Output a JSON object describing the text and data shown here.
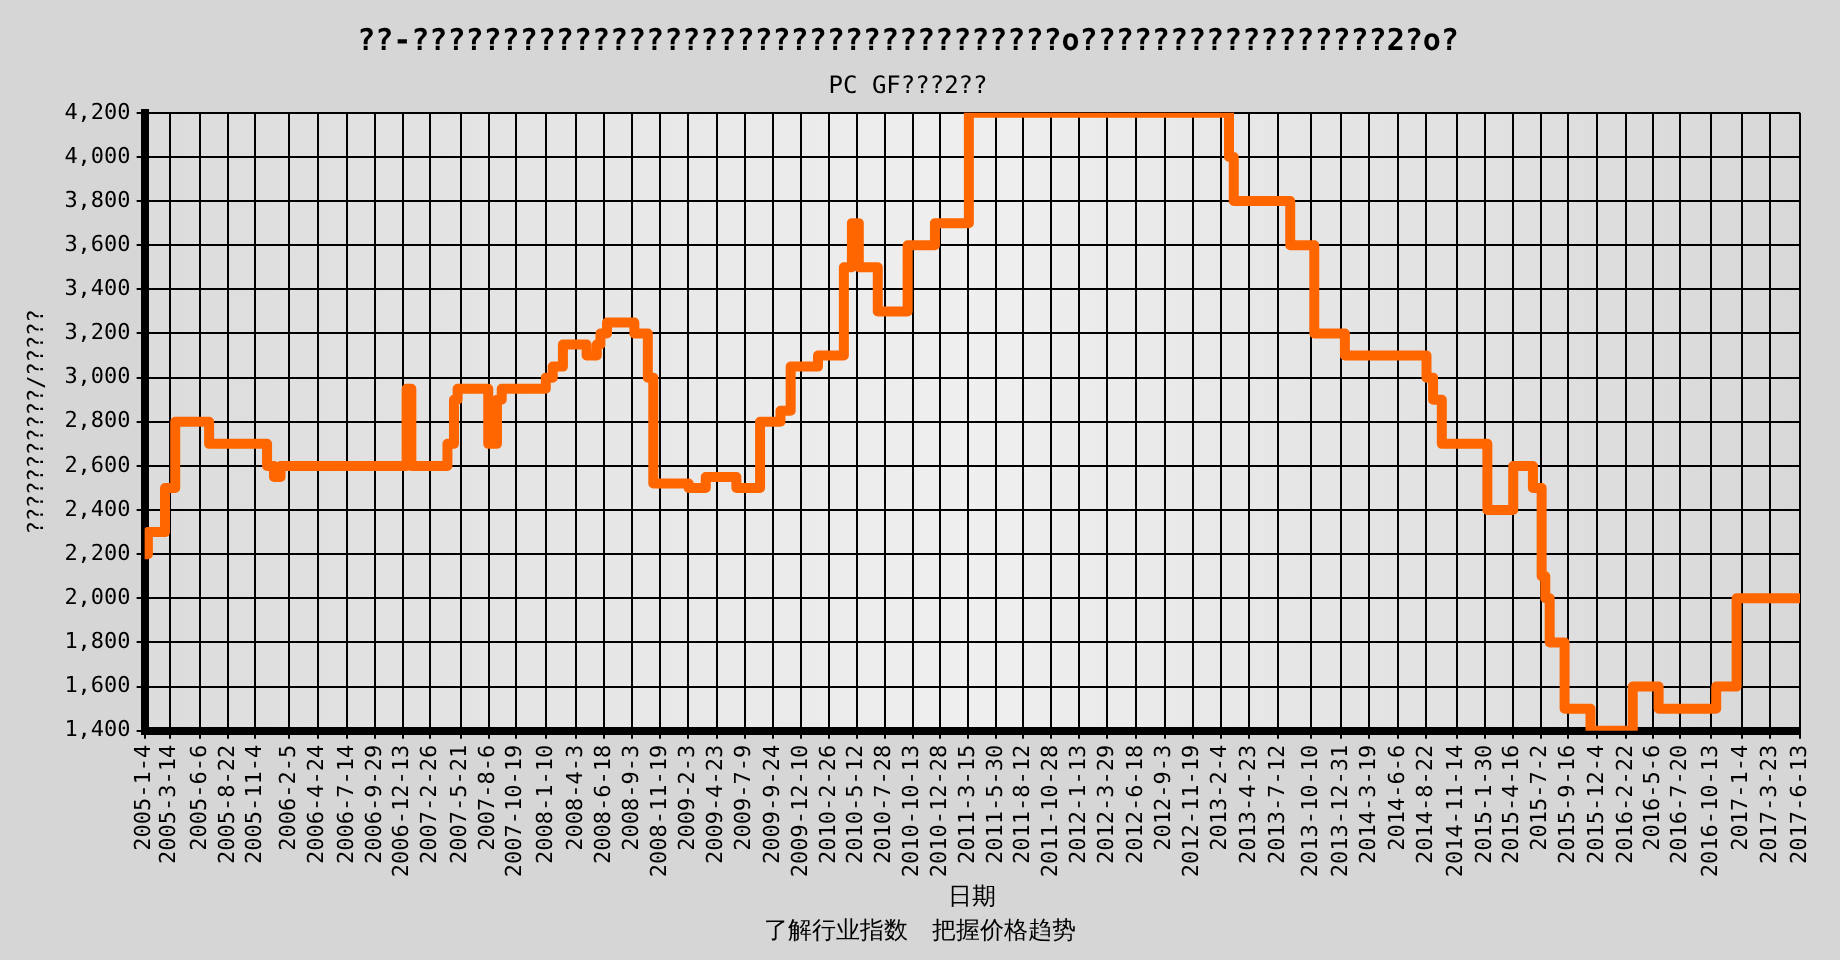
{
  "chart_data": {
    "type": "step",
    "title": "??-????????????????????????????????????o?????????????????2?o?",
    "subtitle": "PC GF???2??",
    "xlabel": "日期",
    "ylabel": "???????????/?????",
    "annotations": [
      "了解行业指数　把握价格趋势"
    ],
    "x": [
      "2005-01-04",
      "2005-01-13",
      "2005-03-01",
      "2005-03-29",
      "2005-06-30",
      "2005-12-06",
      "2005-12-25",
      "2006-01-12",
      "2006-12-24",
      "2007-01-06",
      "2007-04-15",
      "2007-05-03",
      "2007-05-13",
      "2007-08-05",
      "2007-08-29",
      "2007-09-11",
      "2008-01-10",
      "2008-01-29",
      "2008-02-26",
      "2008-04-13",
      "2008-05-01",
      "2008-05-29",
      "2008-06-08",
      "2008-06-26",
      "2008-09-09",
      "2008-10-16",
      "2008-10-31",
      "2009-02-05",
      "2009-03-24",
      "2009-06-16",
      "2009-08-20",
      "2009-10-15",
      "2009-11-12",
      "2010-01-26",
      "2010-04-07",
      "2010-04-29",
      "2010-05-18",
      "2010-07-09",
      "2010-09-29",
      "2010-12-13",
      "2011-03-16",
      "2013-02-27",
      "2013-03-12",
      "2013-08-14",
      "2013-10-19",
      "2014-01-11",
      "2014-08-23",
      "2014-09-10",
      "2014-10-04",
      "2015-02-06",
      "2015-04-18",
      "2015-06-11",
      "2015-07-05",
      "2015-07-15",
      "2015-07-27",
      "2015-09-06",
      "2015-11-16",
      "2016-03-11",
      "2016-05-21",
      "2016-10-26",
      "2016-12-21",
      "2017-06-13"
    ],
    "series": [
      {
        "color": "#ff6600",
        "values": [
          2200,
          2300,
          2500,
          2800,
          2700,
          2600,
          2550,
          2600,
          2950,
          2600,
          2700,
          2900,
          2950,
          2700,
          2900,
          2950,
          3000,
          3050,
          3150,
          3150,
          3100,
          3150,
          3200,
          3250,
          3200,
          3000,
          2520,
          2500,
          2550,
          2500,
          2800,
          2850,
          3050,
          3100,
          3500,
          3700,
          3500,
          3300,
          3600,
          3700,
          4200,
          4000,
          3800,
          3600,
          3200,
          3100,
          3000,
          2900,
          2700,
          2400,
          2600,
          2500,
          2100,
          2000,
          1800,
          1500,
          1400,
          1600,
          1500,
          1600,
          2000,
          2000
        ]
      }
    ],
    "xlim": [
      "2005-01-04",
      "2017-06-13"
    ],
    "xticks": [
      {
        "value": "2005-01-04",
        "label": "2005-1-4"
      },
      {
        "value": "2005-03-14",
        "label": "2005-3-14"
      },
      {
        "value": "2005-06-06",
        "label": "2005-6-6"
      },
      {
        "value": "2005-08-22",
        "label": "2005-8-22"
      },
      {
        "value": "2005-11-04",
        "label": "2005-11-4"
      },
      {
        "value": "2006-02-05",
        "label": "2006-2-5"
      },
      {
        "value": "2006-04-24",
        "label": "2006-4-24"
      },
      {
        "value": "2006-07-14",
        "label": "2006-7-14"
      },
      {
        "value": "2006-09-29",
        "label": "2006-9-29"
      },
      {
        "value": "2006-12-13",
        "label": "2006-12-13"
      },
      {
        "value": "2007-02-26",
        "label": "2007-2-26"
      },
      {
        "value": "2007-05-21",
        "label": "2007-5-21"
      },
      {
        "value": "2007-08-06",
        "label": "2007-8-6"
      },
      {
        "value": "2007-10-19",
        "label": "2007-10-19"
      },
      {
        "value": "2008-01-10",
        "label": "2008-1-10"
      },
      {
        "value": "2008-04-03",
        "label": "2008-4-3"
      },
      {
        "value": "2008-06-18",
        "label": "2008-6-18"
      },
      {
        "value": "2008-09-03",
        "label": "2008-9-3"
      },
      {
        "value": "2008-11-19",
        "label": "2008-11-19"
      },
      {
        "value": "2009-02-03",
        "label": "2009-2-3"
      },
      {
        "value": "2009-04-23",
        "label": "2009-4-23"
      },
      {
        "value": "2009-07-09",
        "label": "2009-7-9"
      },
      {
        "value": "2009-09-24",
        "label": "2009-9-24"
      },
      {
        "value": "2009-12-10",
        "label": "2009-12-10"
      },
      {
        "value": "2010-02-26",
        "label": "2010-2-26"
      },
      {
        "value": "2010-05-12",
        "label": "2010-5-12"
      },
      {
        "value": "2010-07-28",
        "label": "2010-7-28"
      },
      {
        "value": "2010-10-13",
        "label": "2010-10-13"
      },
      {
        "value": "2010-12-28",
        "label": "2010-12-28"
      },
      {
        "value": "2011-03-15",
        "label": "2011-3-15"
      },
      {
        "value": "2011-05-30",
        "label": "2011-5-30"
      },
      {
        "value": "2011-08-12",
        "label": "2011-8-12"
      },
      {
        "value": "2011-10-28",
        "label": "2011-10-28"
      },
      {
        "value": "2012-01-13",
        "label": "2012-1-13"
      },
      {
        "value": "2012-03-29",
        "label": "2012-3-29"
      },
      {
        "value": "2012-06-18",
        "label": "2012-6-18"
      },
      {
        "value": "2012-09-03",
        "label": "2012-9-3"
      },
      {
        "value": "2012-11-19",
        "label": "2012-11-19"
      },
      {
        "value": "2013-02-04",
        "label": "2013-2-4"
      },
      {
        "value": "2013-04-23",
        "label": "2013-4-23"
      },
      {
        "value": "2013-07-12",
        "label": "2013-7-12"
      },
      {
        "value": "2013-10-10",
        "label": "2013-10-10"
      },
      {
        "value": "2013-12-31",
        "label": "2013-12-31"
      },
      {
        "value": "2014-03-19",
        "label": "2014-3-19"
      },
      {
        "value": "2014-06-06",
        "label": "2014-6-6"
      },
      {
        "value": "2014-08-22",
        "label": "2014-8-22"
      },
      {
        "value": "2014-11-14",
        "label": "2014-11-14"
      },
      {
        "value": "2015-01-30",
        "label": "2015-1-30"
      },
      {
        "value": "2015-04-16",
        "label": "2015-4-16"
      },
      {
        "value": "2015-07-02",
        "label": "2015-7-2"
      },
      {
        "value": "2015-09-16",
        "label": "2015-9-16"
      },
      {
        "value": "2015-12-04",
        "label": "2015-12-4"
      },
      {
        "value": "2016-02-22",
        "label": "2016-2-22"
      },
      {
        "value": "2016-05-06",
        "label": "2016-5-6"
      },
      {
        "value": "2016-07-20",
        "label": "2016-7-20"
      },
      {
        "value": "2016-10-13",
        "label": "2016-10-13"
      },
      {
        "value": "2017-01-04",
        "label": "2017-1-4"
      },
      {
        "value": "2017-03-23",
        "label": "2017-3-23"
      },
      {
        "value": "2017-06-13",
        "label": "2017-6-13"
      }
    ],
    "ylim": [
      1400,
      4200
    ],
    "yticks": [
      {
        "value": 1400,
        "label": "1,400"
      },
      {
        "value": 1600,
        "label": "1,600"
      },
      {
        "value": 1800,
        "label": "1,800"
      },
      {
        "value": 2000,
        "label": "2,000"
      },
      {
        "value": 2200,
        "label": "2,200"
      },
      {
        "value": 2400,
        "label": "2,400"
      },
      {
        "value": 2600,
        "label": "2,600"
      },
      {
        "value": 2800,
        "label": "2,800"
      },
      {
        "value": 3000,
        "label": "3,000"
      },
      {
        "value": 3200,
        "label": "3,200"
      },
      {
        "value": 3400,
        "label": "3,400"
      },
      {
        "value": 3600,
        "label": "3,600"
      },
      {
        "value": 3800,
        "label": "3,800"
      },
      {
        "value": 4000,
        "label": "4,000"
      },
      {
        "value": 4200,
        "label": "4,200"
      }
    ],
    "grid": true,
    "legend": false,
    "marker": "none",
    "line_style": "solid"
  }
}
